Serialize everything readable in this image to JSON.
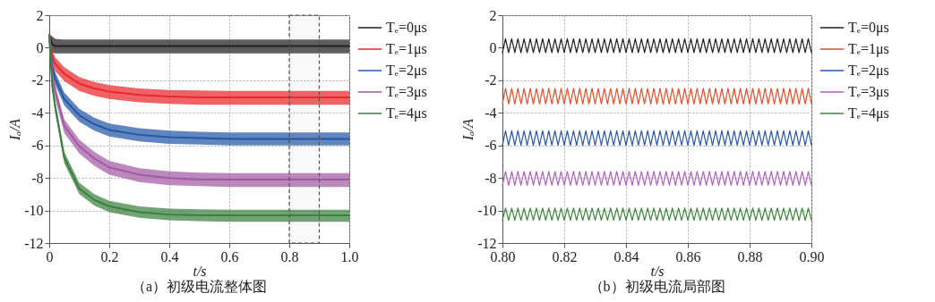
{
  "chart_data": [
    {
      "type": "line",
      "title": "（a）初级电流整体图",
      "xlabel": "t/s",
      "ylabel": "Iₐ/A",
      "xlim": [
        0,
        1
      ],
      "ylim": [
        -12,
        2
      ],
      "xticks": [
        0,
        0.2,
        0.4,
        0.6,
        0.8,
        {
          "value": 1,
          "label": "1.0"
        }
      ],
      "yticks": [
        -12,
        -10,
        -8,
        -6,
        -4,
        -2,
        0,
        2
      ],
      "grid": true,
      "legend": "top right",
      "x": [
        0,
        0.01,
        0.02,
        0.05,
        0.1,
        0.15,
        0.2,
        0.3,
        0.4,
        0.5,
        0.6,
        0.8,
        1.0
      ],
      "series": [
        {
          "name": "Tₑ=0μs",
          "color": "#231f20",
          "values": [
            0.8,
            0.2,
            0.1,
            0.1,
            0.1,
            0.1,
            0.1,
            0.1,
            0.1,
            0.1,
            0.1,
            0.1,
            0.1
          ],
          "lower": [
            0.8,
            -0.3,
            -0.35,
            -0.35,
            -0.35,
            -0.35,
            -0.35,
            -0.35,
            -0.35,
            -0.35,
            -0.35,
            -0.35,
            -0.35
          ],
          "upper": [
            0.8,
            0.7,
            0.55,
            0.5,
            0.5,
            0.5,
            0.5,
            0.5,
            0.5,
            0.5,
            0.5,
            0.5,
            0.5
          ]
        },
        {
          "name": "Tₑ=1μs",
          "color": "#e8282b",
          "values": [
            0.8,
            -0.55,
            -1.0,
            -1.6,
            -2.2,
            -2.5,
            -2.7,
            -2.9,
            -3.0,
            -3.05,
            -3.05,
            -3.05,
            -3.05
          ],
          "lower": [
            0.8,
            -0.9,
            -1.45,
            -2.05,
            -2.65,
            -2.95,
            -3.15,
            -3.35,
            -3.45,
            -3.5,
            -3.5,
            -3.5,
            -3.5
          ],
          "upper": [
            0.8,
            -0.2,
            -0.6,
            -1.2,
            -1.8,
            -2.1,
            -2.3,
            -2.5,
            -2.6,
            -2.63,
            -2.65,
            -2.65,
            -2.65
          ]
        },
        {
          "name": "Tₑ=2μs",
          "color": "#2457a6",
          "values": [
            0.8,
            -1.2,
            -1.9,
            -3.15,
            -4.15,
            -4.7,
            -5.05,
            -5.35,
            -5.5,
            -5.55,
            -5.6,
            -5.6,
            -5.6
          ],
          "lower": [
            0.8,
            -1.6,
            -2.3,
            -3.55,
            -4.55,
            -5.1,
            -5.45,
            -5.75,
            -5.9,
            -5.95,
            -6.0,
            -6.0,
            -6.0
          ],
          "upper": [
            0.8,
            -0.8,
            -1.5,
            -2.75,
            -3.75,
            -4.3,
            -4.65,
            -4.95,
            -5.1,
            -5.17,
            -5.2,
            -5.2,
            -5.2
          ]
        },
        {
          "name": "Tₑ=3μs",
          "color": "#a35aa4",
          "values": [
            0.8,
            -1.7,
            -2.7,
            -4.8,
            -6.05,
            -6.8,
            -7.35,
            -7.8,
            -8.0,
            -8.1,
            -8.1,
            -8.1,
            -8.1
          ],
          "lower": [
            0.8,
            -2.15,
            -3.15,
            -5.25,
            -6.5,
            -7.25,
            -7.8,
            -8.25,
            -8.45,
            -8.5,
            -8.55,
            -8.55,
            -8.55
          ],
          "upper": [
            0.8,
            -1.3,
            -2.3,
            -4.4,
            -5.65,
            -6.4,
            -6.95,
            -7.4,
            -7.6,
            -7.67,
            -7.7,
            -7.7,
            -7.7
          ]
        },
        {
          "name": "Tₑ=4μs",
          "color": "#3a7f3f",
          "values": [
            0.8,
            -2.35,
            -3.65,
            -6.75,
            -8.65,
            -9.35,
            -9.75,
            -10.1,
            -10.25,
            -10.3,
            -10.3,
            -10.3,
            -10.3
          ],
          "lower": [
            0.8,
            -2.7,
            -4.0,
            -7.1,
            -9.0,
            -9.7,
            -10.1,
            -10.45,
            -10.6,
            -10.65,
            -10.7,
            -10.7,
            -10.7
          ],
          "upper": [
            0.8,
            -2.0,
            -3.3,
            -6.4,
            -8.3,
            -9.0,
            -9.4,
            -9.75,
            -9.88,
            -9.93,
            -9.95,
            -9.95,
            -9.95
          ]
        }
      ],
      "bands": [
        {
          "axis": "x",
          "from": 0.8,
          "to": 0.9
        }
      ]
    },
    {
      "type": "line",
      "title": "（b）初级电流局部图",
      "xlabel": "t/s",
      "ylabel": "Iₐ/A",
      "xlim": [
        0.8,
        0.9
      ],
      "ylim": [
        -12,
        2
      ],
      "xticks": [
        {
          "value": 0.8,
          "label": "0.80"
        },
        0.82,
        0.84,
        0.86,
        0.88,
        {
          "value": 0.9,
          "label": "0.90"
        }
      ],
      "yticks": [
        -12,
        -10,
        -8,
        -6,
        -4,
        -2,
        0,
        2
      ],
      "grid": true,
      "legend": "top right",
      "x": [
        0.8,
        0.801,
        0.802,
        0.803,
        0.804,
        0.805,
        0.806,
        0.807,
        0.808,
        0.809,
        0.81,
        0.811,
        0.812,
        0.813,
        0.814,
        0.815,
        0.816,
        0.817,
        0.818,
        0.819,
        0.82,
        0.821,
        0.822,
        0.823,
        0.824,
        0.825,
        0.826,
        0.827,
        0.828,
        0.829,
        0.83,
        0.831,
        0.832,
        0.833,
        0.834,
        0.835,
        0.836,
        0.837,
        0.838,
        0.839,
        0.84,
        0.841,
        0.842,
        0.843,
        0.844,
        0.845,
        0.846,
        0.847,
        0.848,
        0.849,
        0.85,
        0.851,
        0.852,
        0.853,
        0.854,
        0.855,
        0.856,
        0.857,
        0.858,
        0.859,
        0.86,
        0.861,
        0.862,
        0.863,
        0.864,
        0.865,
        0.866,
        0.867,
        0.868,
        0.869,
        0.87,
        0.871,
        0.872,
        0.873,
        0.874,
        0.875,
        0.876,
        0.877,
        0.878,
        0.879,
        0.88,
        0.881,
        0.882,
        0.883,
        0.884,
        0.885,
        0.886,
        0.887,
        0.888,
        0.889,
        0.89,
        0.891,
        0.892,
        0.893,
        0.894,
        0.895,
        0.896,
        0.897,
        0.898,
        0.899,
        0.9
      ],
      "series": [
        {
          "name": "Tₑ=0μs",
          "color": "#231f20",
          "values": [
            -0.3,
            0.55,
            -0.3,
            0.55,
            -0.3,
            0.55,
            -0.3,
            0.55,
            -0.3,
            0.55,
            -0.3,
            0.55,
            -0.3,
            0.55,
            -0.3,
            0.55,
            -0.3,
            0.55,
            -0.3,
            0.55,
            -0.3,
            0.55,
            -0.3,
            0.55,
            -0.3,
            0.55,
            -0.3,
            0.55,
            -0.3,
            0.55,
            -0.3,
            0.55,
            -0.3,
            0.55,
            -0.3,
            0.55,
            -0.3,
            0.55,
            -0.3,
            0.55,
            -0.3,
            0.55,
            -0.3,
            0.55,
            -0.3,
            0.55,
            -0.3,
            0.55,
            -0.3,
            0.55,
            -0.3,
            0.55,
            -0.3,
            0.55,
            -0.3,
            0.55,
            -0.3,
            0.55,
            -0.3,
            0.55,
            -0.3,
            0.55,
            -0.3,
            0.55,
            -0.3,
            0.55,
            -0.3,
            0.55,
            -0.3,
            0.55,
            -0.3,
            0.55,
            -0.3,
            0.55,
            -0.3,
            0.55,
            -0.3,
            0.55,
            -0.3,
            0.55,
            -0.3,
            0.55,
            -0.3,
            0.55,
            -0.3,
            0.55,
            -0.3,
            0.55,
            -0.3,
            0.55,
            -0.3,
            0.55,
            -0.3,
            0.55,
            -0.3,
            0.55,
            -0.3,
            0.55,
            -0.3,
            0.55,
            -0.3
          ]
        },
        {
          "name": "Tₑ=1μs",
          "color": "#f04a26",
          "values": [
            -3.45,
            -2.5,
            -3.45,
            -2.5,
            -3.45,
            -2.5,
            -3.45,
            -2.5,
            -3.45,
            -2.5,
            -3.45,
            -2.5,
            -3.45,
            -2.5,
            -3.45,
            -2.5,
            -3.45,
            -2.5,
            -3.45,
            -2.5,
            -3.45,
            -2.5,
            -3.45,
            -2.5,
            -3.45,
            -2.5,
            -3.45,
            -2.5,
            -3.45,
            -2.5,
            -3.45,
            -2.5,
            -3.45,
            -2.5,
            -3.45,
            -2.5,
            -3.45,
            -2.5,
            -3.45,
            -2.5,
            -3.45,
            -2.5,
            -3.45,
            -2.5,
            -3.45,
            -2.5,
            -3.45,
            -2.5,
            -3.45,
            -2.5,
            -3.45,
            -2.5,
            -3.45,
            -2.5,
            -3.45,
            -2.5,
            -3.45,
            -2.5,
            -3.45,
            -2.5,
            -3.45,
            -2.5,
            -3.45,
            -2.5,
            -3.45,
            -2.5,
            -3.45,
            -2.5,
            -3.45,
            -2.5,
            -3.45,
            -2.5,
            -3.45,
            -2.5,
            -3.45,
            -2.5,
            -3.45,
            -2.5,
            -3.45,
            -2.5,
            -3.45,
            -2.5,
            -3.45,
            -2.5,
            -3.45,
            -2.5,
            -3.45,
            -2.5,
            -3.45,
            -2.5,
            -3.45,
            -2.5,
            -3.45,
            -2.5,
            -3.45,
            -2.5,
            -3.45,
            -2.5,
            -3.45,
            -2.5,
            -3.45
          ]
        },
        {
          "name": "Tₑ=2μs",
          "color": "#2b56b0",
          "values": [
            -6.0,
            -5.1,
            -6.0,
            -5.1,
            -6.0,
            -5.1,
            -6.0,
            -5.1,
            -6.0,
            -5.1,
            -6.0,
            -5.1,
            -6.0,
            -5.1,
            -6.0,
            -5.1,
            -6.0,
            -5.1,
            -6.0,
            -5.1,
            -6.0,
            -5.1,
            -6.0,
            -5.1,
            -6.0,
            -5.1,
            -6.0,
            -5.1,
            -6.0,
            -5.1,
            -6.0,
            -5.1,
            -6.0,
            -5.1,
            -6.0,
            -5.1,
            -6.0,
            -5.1,
            -6.0,
            -5.1,
            -6.0,
            -5.1,
            -6.0,
            -5.1,
            -6.0,
            -5.1,
            -6.0,
            -5.1,
            -6.0,
            -5.1,
            -6.0,
            -5.1,
            -6.0,
            -5.1,
            -6.0,
            -5.1,
            -6.0,
            -5.1,
            -6.0,
            -5.1,
            -6.0,
            -5.1,
            -6.0,
            -5.1,
            -6.0,
            -5.1,
            -6.0,
            -5.1,
            -6.0,
            -5.1,
            -6.0,
            -5.1,
            -6.0,
            -5.1,
            -6.0,
            -5.1,
            -6.0,
            -5.1,
            -6.0,
            -5.1,
            -6.0,
            -5.1,
            -6.0,
            -5.1,
            -6.0,
            -5.1,
            -6.0,
            -5.1,
            -6.0,
            -5.1,
            -6.0,
            -5.1,
            -6.0,
            -5.1,
            -6.0,
            -5.1,
            -6.0,
            -5.1,
            -6.0,
            -5.1,
            -6.0
          ]
        },
        {
          "name": "Tₑ=3μs",
          "color": "#b060c0",
          "values": [
            -8.45,
            -7.6,
            -8.45,
            -7.6,
            -8.45,
            -7.6,
            -8.45,
            -7.6,
            -8.45,
            -7.6,
            -8.45,
            -7.6,
            -8.45,
            -7.6,
            -8.45,
            -7.6,
            -8.45,
            -7.6,
            -8.45,
            -7.6,
            -8.45,
            -7.6,
            -8.45,
            -7.6,
            -8.45,
            -7.6,
            -8.45,
            -7.6,
            -8.45,
            -7.6,
            -8.45,
            -7.6,
            -8.45,
            -7.6,
            -8.45,
            -7.6,
            -8.45,
            -7.6,
            -8.45,
            -7.6,
            -8.45,
            -7.6,
            -8.45,
            -7.6,
            -8.45,
            -7.6,
            -8.45,
            -7.6,
            -8.45,
            -7.6,
            -8.45,
            -7.6,
            -8.45,
            -7.6,
            -8.45,
            -7.6,
            -8.45,
            -7.6,
            -8.45,
            -7.6,
            -8.45,
            -7.6,
            -8.45,
            -7.6,
            -8.45,
            -7.6,
            -8.45,
            -7.6,
            -8.45,
            -7.6,
            -8.45,
            -7.6,
            -8.45,
            -7.6,
            -8.45,
            -7.6,
            -8.45,
            -7.6,
            -8.45,
            -7.6,
            -8.45,
            -7.6,
            -8.45,
            -7.6,
            -8.45,
            -7.6,
            -8.45,
            -7.6,
            -8.45,
            -7.6,
            -8.45,
            -7.6,
            -8.45,
            -7.6,
            -8.45,
            -7.6,
            -8.45,
            -7.6,
            -8.45,
            -7.6,
            -8.45
          ]
        },
        {
          "name": "Tₑ=4μs",
          "color": "#3d8a3d",
          "values": [
            -10.6,
            -9.85,
            -10.6,
            -9.85,
            -10.6,
            -9.85,
            -10.6,
            -9.85,
            -10.6,
            -9.85,
            -10.6,
            -9.85,
            -10.6,
            -9.85,
            -10.6,
            -9.85,
            -10.6,
            -9.85,
            -10.6,
            -9.85,
            -10.6,
            -9.85,
            -10.6,
            -9.85,
            -10.6,
            -9.85,
            -10.6,
            -9.85,
            -10.6,
            -9.85,
            -10.6,
            -9.85,
            -10.6,
            -9.85,
            -10.6,
            -9.85,
            -10.6,
            -9.85,
            -10.6,
            -9.85,
            -10.6,
            -9.85,
            -10.6,
            -9.85,
            -10.6,
            -9.85,
            -10.6,
            -9.85,
            -10.6,
            -9.85,
            -10.6,
            -9.85,
            -10.6,
            -9.85,
            -10.6,
            -9.85,
            -10.6,
            -9.85,
            -10.6,
            -9.85,
            -10.6,
            -9.85,
            -10.6,
            -9.85,
            -10.6,
            -9.85,
            -10.6,
            -9.85,
            -10.6,
            -9.85,
            -10.6,
            -9.85,
            -10.6,
            -9.85,
            -10.6,
            -9.85,
            -10.6,
            -9.85,
            -10.6,
            -9.85,
            -10.6,
            -9.85,
            -10.6,
            -9.85,
            -10.6,
            -9.85,
            -10.6,
            -9.85,
            -10.6,
            -9.85,
            -10.6,
            -9.85,
            -10.6,
            -9.85,
            -10.6,
            -9.85,
            -10.6,
            -9.85,
            -10.6,
            -9.85,
            -10.6
          ]
        }
      ]
    }
  ]
}
